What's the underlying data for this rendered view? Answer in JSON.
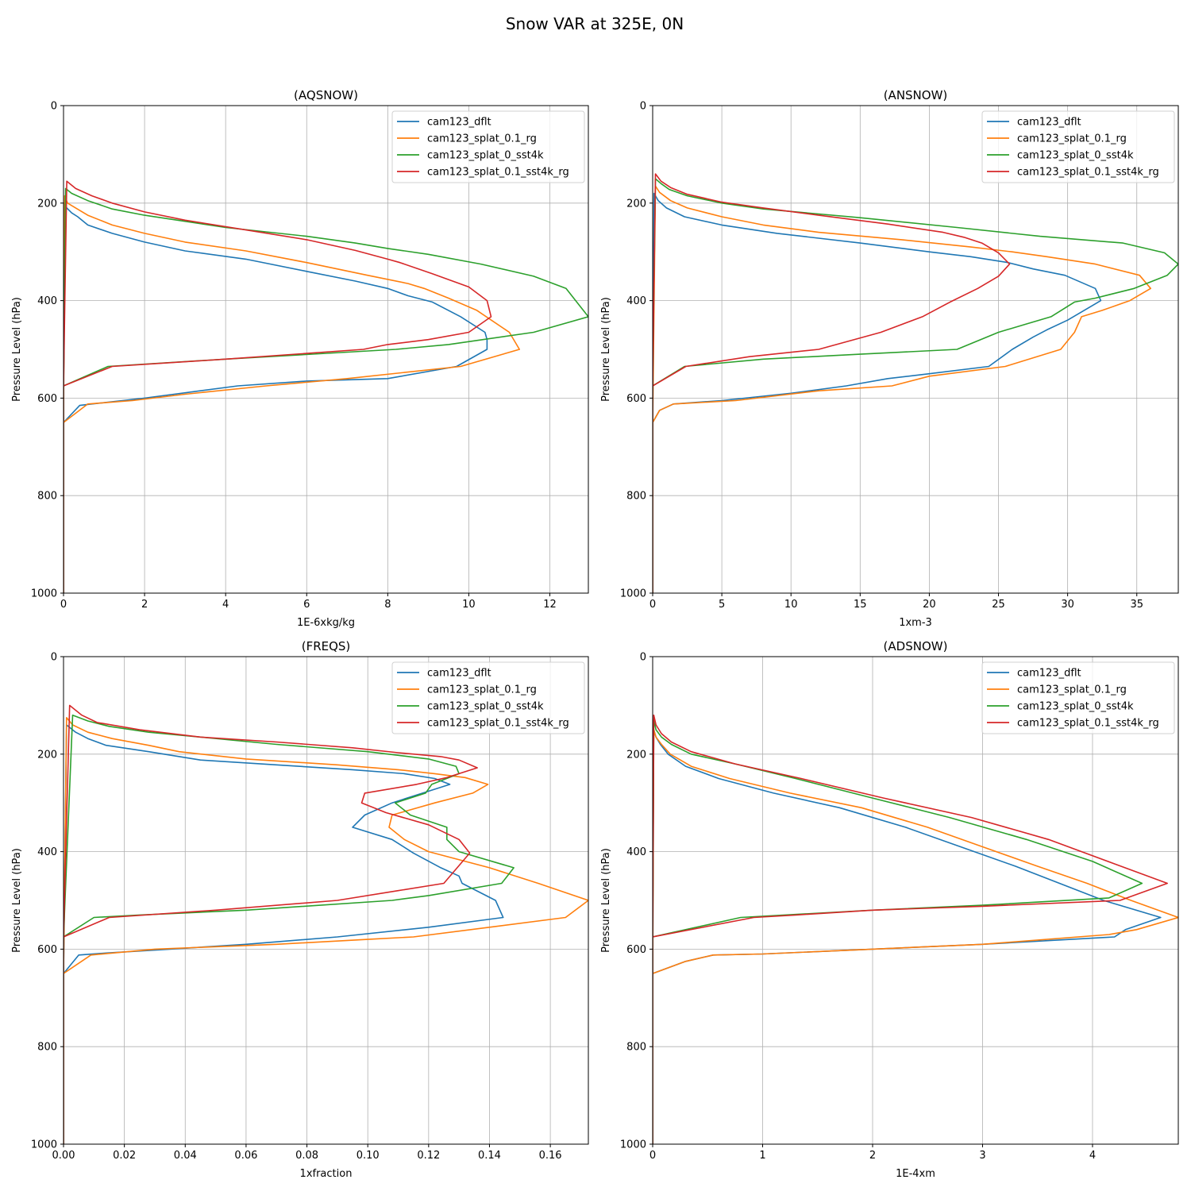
{
  "figure": {
    "title": "Snow VAR at 325E, 0N"
  },
  "colors": {
    "cam123_dflt": "#1f77b4",
    "cam123_splat_0.1_rg": "#ff7f0e",
    "cam123_splat_0_sst4k": "#2ca02c",
    "cam123_splat_0.1_sst4k_rg": "#d62728"
  },
  "chart_data": [
    {
      "type": "line",
      "title": "(AQSNOW)",
      "xlabel": "1E-6xkg/kg",
      "ylabel": "Pressure Level (hPa)",
      "xlim": [
        0,
        12.95
      ],
      "ylim": [
        1000,
        0
      ],
      "y_inverted": true,
      "grid": true,
      "legend": "top-right",
      "xticks": [
        0,
        2,
        4,
        6,
        8,
        10,
        12
      ],
      "yticks": [
        0,
        200,
        400,
        600,
        800,
        1000
      ],
      "series": [
        {
          "name": "cam123_dflt",
          "x": [
            0,
            0,
            0.02,
            0.08,
            0.2,
            0.35,
            0.6,
            1.2,
            2.0,
            3.0,
            4.5,
            6.0,
            7.2,
            8.0,
            8.5,
            9.1,
            9.8,
            10.4,
            10.45,
            10.45,
            9.7,
            8.0,
            6.0,
            4.3,
            2.0,
            0.7,
            0.4,
            0,
            0
          ],
          "y": [
            1000,
            650,
            200,
            210,
            220,
            228,
            245,
            262,
            280,
            298,
            315,
            340,
            360,
            375,
            390,
            403,
            433,
            465,
            480,
            500,
            535,
            560,
            565,
            575,
            600,
            612,
            615,
            650,
            600
          ]
        },
        {
          "name": "cam123_splat_0.1_rg",
          "x": [
            0,
            0,
            0.03,
            0.1,
            0.3,
            0.6,
            1.2,
            2.0,
            3.0,
            4.5,
            6.0,
            7.5,
            8.5,
            8.9,
            9.5,
            10.2,
            11.0,
            11.25,
            9.8,
            7.0,
            5.0,
            3.0,
            1.7,
            0.6,
            0
          ],
          "y": [
            1000,
            650,
            185,
            200,
            210,
            225,
            245,
            262,
            280,
            298,
            322,
            348,
            365,
            375,
            395,
            420,
            465,
            500,
            535,
            560,
            575,
            592,
            605,
            612,
            650
          ]
        },
        {
          "name": "cam123_splat_0_sst4k",
          "x": [
            0,
            0,
            0.05,
            0.2,
            0.6,
            1.2,
            2.0,
            4.0,
            6.0,
            7.2,
            8.0,
            9.0,
            10.3,
            11.6,
            12.4,
            12.95,
            11.6,
            9.5,
            8.2,
            4.0,
            1.1,
            0
          ],
          "y": [
            1000,
            575,
            170,
            180,
            195,
            212,
            225,
            250,
            268,
            282,
            293,
            305,
            325,
            350,
            375,
            433,
            465,
            490,
            500,
            520,
            535,
            575
          ]
        },
        {
          "name": "cam123_splat_0.1_sst4k_rg",
          "x": [
            0,
            0,
            0.08,
            0.3,
            0.7,
            1.2,
            2.0,
            3.0,
            4.5,
            6.0,
            7.2,
            8.0,
            8.3,
            9.1,
            10.0,
            10.45,
            10.55,
            10.0,
            9.0,
            8.0,
            7.4,
            4.0,
            1.2,
            0
          ],
          "y": [
            1000,
            575,
            155,
            170,
            185,
            200,
            218,
            235,
            255,
            275,
            297,
            315,
            322,
            345,
            372,
            400,
            433,
            465,
            480,
            490,
            500,
            520,
            535,
            575
          ]
        }
      ]
    },
    {
      "type": "line",
      "title": "(ANSNOW)",
      "xlabel": "1xm-3",
      "ylabel": "Pressure Level (hPa)",
      "xlim": [
        0,
        38
      ],
      "ylim": [
        1000,
        0
      ],
      "y_inverted": true,
      "grid": true,
      "legend": "top-right",
      "xticks": [
        0,
        5,
        10,
        15,
        20,
        25,
        30,
        35
      ],
      "yticks": [
        0,
        200,
        400,
        600,
        800,
        1000
      ],
      "series": [
        {
          "name": "cam123_dflt",
          "x": [
            0,
            0,
            0.1,
            0.4,
            1.0,
            2.3,
            5.0,
            9.0,
            15.0,
            20.0,
            23.0,
            25.7,
            27.5,
            29.8,
            32.0,
            32.4,
            30.0,
            28.5,
            27.5,
            26.0,
            24.3,
            20.0,
            17.0,
            14.0,
            10.0,
            5.0,
            1.5,
            0.5,
            0
          ],
          "y": [
            1000,
            650,
            180,
            195,
            210,
            228,
            245,
            262,
            282,
            300,
            310,
            322,
            335,
            348,
            375,
            400,
            440,
            460,
            475,
            500,
            535,
            550,
            560,
            575,
            590,
            605,
            612,
            625,
            650
          ]
        },
        {
          "name": "cam123_splat_0.1_rg",
          "x": [
            0,
            0,
            0.2,
            0.5,
            1.3,
            2.5,
            5.0,
            8.0,
            12.0,
            18.0,
            23.0,
            26.0,
            28.5,
            32.0,
            35.2,
            36.0,
            34.5,
            32.5,
            31.0,
            30.5,
            29.5,
            25.5,
            20.0,
            17.3,
            12.0,
            6.0,
            1.5,
            0.5,
            0
          ],
          "y": [
            1000,
            650,
            165,
            178,
            195,
            210,
            228,
            245,
            260,
            275,
            290,
            300,
            310,
            325,
            348,
            375,
            400,
            420,
            433,
            465,
            500,
            535,
            555,
            575,
            585,
            605,
            612,
            625,
            650
          ]
        },
        {
          "name": "cam123_splat_0_sst4k",
          "x": [
            0,
            0,
            0.2,
            0.6,
            1.2,
            2.5,
            5.0,
            8.0,
            15.0,
            22.0,
            28.0,
            34.0,
            37.0,
            38.0,
            37.2,
            34.8,
            32.0,
            30.5,
            28.8,
            27.0,
            25.0,
            22.0,
            15.0,
            8.0,
            2.3,
            0
          ],
          "y": [
            1000,
            575,
            150,
            160,
            172,
            185,
            200,
            212,
            230,
            250,
            268,
            282,
            302,
            325,
            348,
            375,
            395,
            403,
            433,
            448,
            465,
            500,
            510,
            520,
            535,
            575
          ]
        },
        {
          "name": "cam123_splat_0.1_sst4k_rg",
          "x": [
            0,
            0,
            0.2,
            0.6,
            1.3,
            2.5,
            5.0,
            8.0,
            12.0,
            17.0,
            21.0,
            22.5,
            23.8,
            25.0,
            25.8,
            25.0,
            23.5,
            21.5,
            19.5,
            16.5,
            12.0,
            7.0,
            2.4,
            0
          ],
          "y": [
            1000,
            575,
            140,
            155,
            168,
            182,
            198,
            210,
            225,
            243,
            260,
            270,
            282,
            302,
            325,
            350,
            375,
            403,
            433,
            465,
            500,
            515,
            535,
            575
          ]
        }
      ]
    },
    {
      "type": "line",
      "title": "(FREQS)",
      "xlabel": "1xfraction",
      "ylabel": "Pressure Level (hPa)",
      "xlim": [
        0,
        0.1725
      ],
      "ylim": [
        1000,
        0
      ],
      "y_inverted": true,
      "grid": true,
      "legend": "top-right",
      "xticks": [
        0.0,
        0.02,
        0.04,
        0.06,
        0.08,
        0.1,
        0.12,
        0.14,
        0.16
      ],
      "yticks": [
        0,
        200,
        400,
        600,
        800,
        1000
      ],
      "series": [
        {
          "name": "cam123_dflt",
          "x": [
            0,
            0,
            0.001,
            0.004,
            0.008,
            0.014,
            0.028,
            0.045,
            0.07,
            0.095,
            0.112,
            0.122,
            0.127,
            0.118,
            0.108,
            0.099,
            0.095,
            0.108,
            0.115,
            0.124,
            0.13,
            0.131,
            0.142,
            0.1445,
            0.12,
            0.09,
            0.06,
            0.035,
            0.014,
            0.005,
            0
          ],
          "y": [
            1000,
            650,
            140,
            155,
            168,
            182,
            195,
            212,
            222,
            232,
            240,
            250,
            262,
            280,
            300,
            325,
            350,
            375,
            403,
            433,
            450,
            465,
            500,
            535,
            555,
            575,
            590,
            600,
            608,
            612,
            650
          ]
        },
        {
          "name": "cam123_splat_0.1_rg",
          "x": [
            0,
            0,
            0.001,
            0.003,
            0.008,
            0.016,
            0.028,
            0.038,
            0.06,
            0.09,
            0.11,
            0.122,
            0.132,
            0.1395,
            0.1345,
            0.122,
            0.108,
            0.107,
            0.112,
            0.12,
            0.14,
            0.156,
            0.1725,
            0.165,
            0.14,
            0.115,
            0.1,
            0.07,
            0.03,
            0.009,
            0
          ],
          "y": [
            1000,
            650,
            125,
            140,
            155,
            168,
            182,
            195,
            210,
            222,
            232,
            240,
            248,
            262,
            280,
            300,
            325,
            350,
            375,
            400,
            433,
            465,
            500,
            535,
            555,
            575,
            580,
            590,
            600,
            612,
            650
          ]
        },
        {
          "name": "cam123_splat_0_sst4k",
          "x": [
            0,
            0,
            0.003,
            0.008,
            0.015,
            0.028,
            0.045,
            0.07,
            0.1,
            0.12,
            0.129,
            0.13,
            0.121,
            0.119,
            0.109,
            0.114,
            0.126,
            0.126,
            0.13,
            0.148,
            0.144,
            0.12,
            0.108,
            0.06,
            0.025,
            0.01,
            0
          ],
          "y": [
            1000,
            575,
            120,
            132,
            143,
            155,
            165,
            180,
            195,
            210,
            225,
            240,
            262,
            280,
            300,
            325,
            350,
            375,
            400,
            433,
            465,
            490,
            500,
            520,
            530,
            535,
            575
          ]
        },
        {
          "name": "cam123_splat_0.1_sst4k_rg",
          "x": [
            0,
            0,
            0.002,
            0.006,
            0.011,
            0.025,
            0.045,
            0.07,
            0.095,
            0.11,
            0.124,
            0.13,
            0.136,
            0.126,
            0.116,
            0.099,
            0.098,
            0.106,
            0.12,
            0.13,
            0.1335,
            0.125,
            0.11,
            0.09,
            0.05,
            0.015,
            0
          ],
          "y": [
            1000,
            575,
            100,
            120,
            135,
            150,
            165,
            175,
            187,
            197,
            205,
            212,
            228,
            248,
            262,
            280,
            300,
            320,
            345,
            375,
            403,
            465,
            480,
            500,
            520,
            535,
            575
          ]
        }
      ]
    },
    {
      "type": "line",
      "title": "(ADSNOW)",
      "xlabel": "1E-4xm",
      "ylabel": "Pressure Level (hPa)",
      "xlim": [
        0,
        4.78
      ],
      "ylim": [
        1000,
        0
      ],
      "y_inverted": true,
      "grid": true,
      "legend": "top-right",
      "xticks": [
        0,
        1,
        2,
        3,
        4
      ],
      "yticks": [
        0,
        200,
        400,
        600,
        800,
        1000
      ],
      "series": [
        {
          "name": "cam123_dflt",
          "x": [
            0,
            0,
            0.01,
            0.03,
            0.07,
            0.14,
            0.3,
            0.6,
            1.1,
            1.7,
            2.3,
            2.8,
            3.3,
            3.7,
            4.1,
            4.62,
            4.3,
            4.2,
            3.0,
            2.0,
            1.0,
            0.55,
            0.3,
            0
          ],
          "y": [
            1000,
            650,
            150,
            165,
            180,
            200,
            225,
            250,
            280,
            310,
            350,
            390,
            430,
            465,
            500,
            535,
            560,
            575,
            590,
            600,
            610,
            612,
            625,
            650
          ]
        },
        {
          "name": "cam123_splat_0.1_rg",
          "x": [
            0,
            0,
            0.01,
            0.03,
            0.08,
            0.16,
            0.35,
            0.7,
            1.25,
            1.9,
            2.5,
            3.0,
            3.5,
            3.95,
            4.35,
            4.78,
            4.4,
            4.15,
            3.0,
            2.0,
            1.0,
            0.55,
            0.3,
            0
          ],
          "y": [
            1000,
            650,
            150,
            165,
            180,
            200,
            225,
            250,
            280,
            310,
            350,
            390,
            430,
            465,
            500,
            535,
            560,
            570,
            590,
            600,
            610,
            612,
            625,
            650
          ]
        },
        {
          "name": "cam123_splat_0_sst4k",
          "x": [
            0,
            0,
            0.01,
            0.03,
            0.08,
            0.17,
            0.35,
            0.75,
            1.3,
            2.0,
            2.7,
            3.4,
            4.0,
            4.45,
            4.15,
            3.0,
            2.0,
            1.2,
            0.8,
            0
          ],
          "y": [
            1000,
            575,
            130,
            150,
            165,
            180,
            200,
            220,
            250,
            290,
            330,
            375,
            420,
            465,
            495,
            510,
            520,
            530,
            535,
            575
          ]
        },
        {
          "name": "cam123_splat_0.1_sst4k_rg",
          "x": [
            0,
            0,
            0.01,
            0.03,
            0.08,
            0.17,
            0.35,
            0.75,
            1.35,
            2.1,
            2.9,
            3.6,
            4.2,
            4.68,
            4.25,
            3.0,
            2.0,
            1.3,
            0.92,
            0
          ],
          "y": [
            1000,
            575,
            120,
            140,
            158,
            175,
            195,
            220,
            250,
            290,
            330,
            375,
            425,
            465,
            500,
            512,
            520,
            530,
            535,
            575
          ]
        }
      ]
    }
  ]
}
